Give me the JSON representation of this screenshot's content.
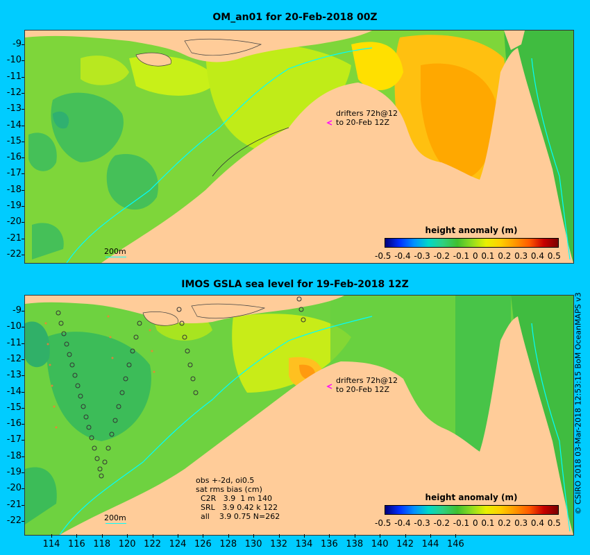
{
  "panels": [
    {
      "title": "OM_an01 for 20-Feb-2018 00Z",
      "drifters_note": "drifters 72h@12\nto 20-Feb 12Z",
      "scale_label": "200m",
      "colorbar": {
        "title": "height anomaly (m)"
      }
    },
    {
      "title": "IMOS GSLA sea level  for 19-Feb-2018 12Z",
      "drifters_note": "drifters 72h@12\nto 20-Feb 12Z",
      "scale_label": "200m",
      "colorbar": {
        "title": "height anomaly (m)"
      },
      "stats_note": "obs +-2d, oi0.5\nsat rms bias (cm)\n  C2R   3.9  1 m 140\n  SRL   3.9 0.42 k 122\n  all    3.9 0.75 N=262"
    }
  ],
  "colorbar_ticks": [
    "-0.5",
    "-0.4",
    "-0.3",
    "-0.2",
    "-0.1",
    "0",
    "0.1",
    "0.2",
    "0.3",
    "0.4",
    "0.5"
  ],
  "colorbar_colors": [
    "#00007a",
    "#0030ff",
    "#0090ff",
    "#00d8c8",
    "#30d080",
    "#40c030",
    "#90dc20",
    "#e8f000",
    "#ffd000",
    "#ff9800",
    "#ff5a00",
    "#c80000",
    "#7a0000"
  ],
  "top_y_ticks": [
    "-9",
    "-10",
    "-11",
    "-12",
    "-13",
    "-14",
    "-15",
    "-16",
    "-17",
    "-18",
    "-19",
    "-20",
    "-21",
    "-22"
  ],
  "bottom_y_ticks": [
    "-9",
    "-10",
    "-11",
    "-12",
    "-13",
    "-14",
    "-15",
    "-16",
    "-17",
    "-18",
    "-19",
    "-20",
    "-21",
    "-22"
  ],
  "x_ticks": [
    "114",
    "116",
    "118",
    "120",
    "122",
    "124",
    "126",
    "128",
    "130",
    "132",
    "134",
    "136",
    "138",
    "140",
    "142",
    "144",
    "146"
  ],
  "credit": "© CSIRO 2018  03-Mar-2018 12:53:15 BoM OceanMAPS v3",
  "colors": {
    "background": "#00ccff",
    "land": "#ffcc99",
    "contour_200m": "#00ffff",
    "drifter_marker": "#ff00ff"
  }
}
